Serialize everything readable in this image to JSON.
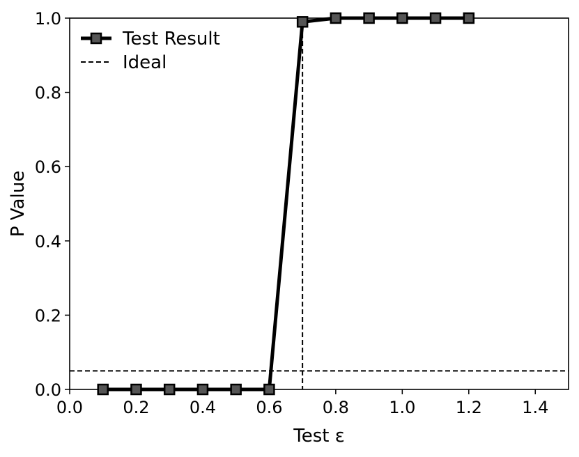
{
  "chart_data": {
    "type": "line",
    "title": "",
    "xlabel": "Test ε",
    "ylabel": "P Value",
    "xlim": [
      0.0,
      1.5
    ],
    "ylim": [
      0.0,
      1.0
    ],
    "x_ticks": [
      "0.0",
      "0.2",
      "0.4",
      "0.6",
      "0.8",
      "1.0",
      "1.2",
      "1.4"
    ],
    "y_ticks": [
      "0.0",
      "0.2",
      "0.4",
      "0.6",
      "0.8",
      "1.0"
    ],
    "grid": false,
    "legend_position": "top-left",
    "series": [
      {
        "name": "Test Result",
        "x": [
          0.1,
          0.2,
          0.3,
          0.4,
          0.5,
          0.6,
          0.7,
          0.8,
          0.9,
          1.0,
          1.1,
          1.2
        ],
        "y": [
          0.0,
          0.0,
          0.0,
          0.0,
          0.0,
          0.0,
          0.99,
          1.0,
          1.0,
          1.0,
          1.0,
          1.0
        ],
        "style": "solid",
        "marker": "square",
        "color": "#000000"
      }
    ],
    "reference_lines": {
      "legend_label": "Ideal",
      "style": "dashed",
      "color": "#000000",
      "horizontal_y": 0.05,
      "vertical_x": 0.7
    }
  }
}
